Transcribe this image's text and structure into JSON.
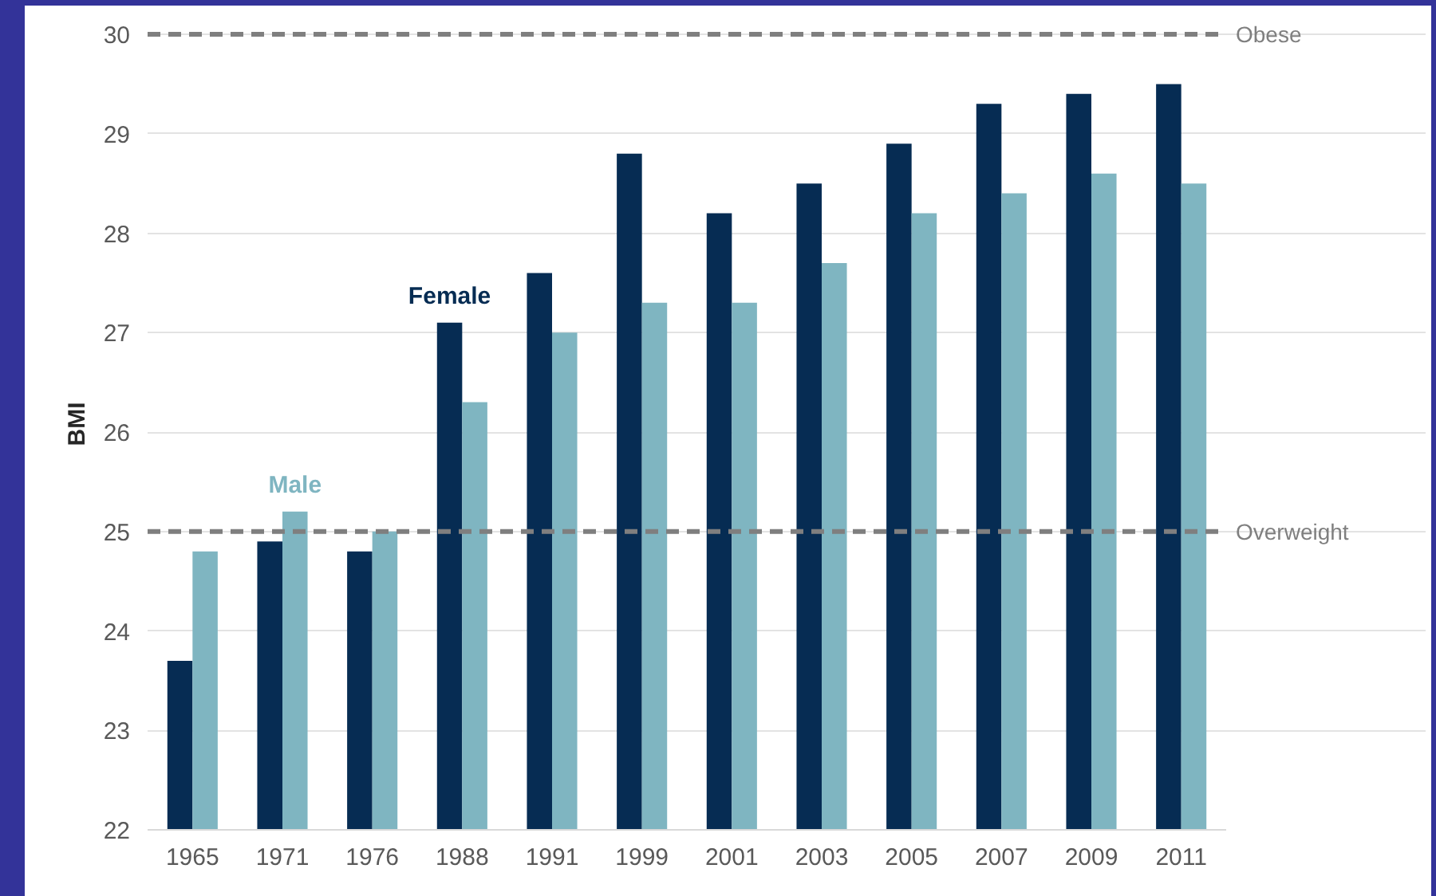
{
  "chart_data": {
    "type": "bar",
    "ylabel": "BMI",
    "categories": [
      "1965",
      "1971",
      "1976",
      "1988",
      "1991",
      "1999",
      "2001",
      "2003",
      "2005",
      "2007",
      "2009",
      "2011"
    ],
    "series": [
      {
        "name": "Female",
        "color": "#062c53",
        "values": [
          23.7,
          24.9,
          24.8,
          27.1,
          27.6,
          28.8,
          28.2,
          28.5,
          28.9,
          29.3,
          29.4,
          29.5
        ]
      },
      {
        "name": "Male",
        "color": "#7fb5c1",
        "values": [
          24.8,
          25.2,
          25.0,
          26.3,
          27.0,
          27.3,
          27.3,
          27.7,
          28.2,
          28.4,
          28.6,
          28.5
        ]
      }
    ],
    "ylim": [
      22,
      30
    ],
    "yticks": [
      22,
      23,
      24,
      25,
      26,
      27,
      28,
      29,
      30
    ],
    "grid": "y",
    "ref_lines": [
      {
        "axis": "y",
        "value": 30,
        "label": "Obese",
        "color": "#7f7f7f",
        "line_style": "dashed"
      },
      {
        "axis": "y",
        "value": 25,
        "label": "Overweight",
        "color": "#7f7f7f",
        "line_style": "dashed"
      }
    ]
  }
}
